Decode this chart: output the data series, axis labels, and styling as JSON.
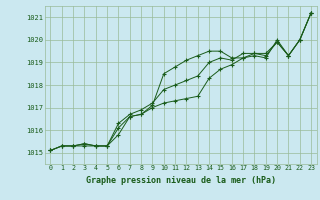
{
  "title": "Graphe pression niveau de la mer (hPa)",
  "bg_color": "#cbe8f0",
  "grid_color": "#99bb99",
  "line_color": "#1a5c1a",
  "xlim": [
    -0.5,
    23.5
  ],
  "ylim": [
    1014.5,
    1021.5
  ],
  "yticks": [
    1015,
    1016,
    1017,
    1018,
    1019,
    1020,
    1021
  ],
  "xticks": [
    0,
    1,
    2,
    3,
    4,
    5,
    6,
    7,
    8,
    9,
    10,
    11,
    12,
    13,
    14,
    15,
    16,
    17,
    18,
    19,
    20,
    21,
    22,
    23
  ],
  "series": [
    [
      1015.1,
      1015.3,
      1015.3,
      1015.4,
      1015.3,
      1015.3,
      1016.1,
      1016.6,
      1016.7,
      1017.1,
      1018.5,
      1018.8,
      1019.1,
      1019.3,
      1019.5,
      1019.5,
      1019.2,
      1019.2,
      1019.3,
      1019.2,
      1020.0,
      1019.3,
      1020.0,
      1021.2
    ],
    [
      1015.1,
      1015.3,
      1015.3,
      1015.3,
      1015.3,
      1015.3,
      1015.8,
      1016.6,
      1016.7,
      1017.0,
      1017.2,
      1017.3,
      1017.4,
      1017.5,
      1018.3,
      1018.7,
      1018.9,
      1019.2,
      1019.4,
      1019.4,
      1019.9,
      1019.3,
      1020.0,
      1021.2
    ],
    [
      1015.1,
      1015.3,
      1015.3,
      1015.4,
      1015.3,
      1015.3,
      1016.3,
      1016.7,
      1016.9,
      1017.2,
      1017.8,
      1018.0,
      1018.2,
      1018.4,
      1019.0,
      1019.2,
      1019.1,
      1019.4,
      1019.4,
      1019.3,
      1019.9,
      1019.3,
      1020.0,
      1021.2
    ]
  ]
}
